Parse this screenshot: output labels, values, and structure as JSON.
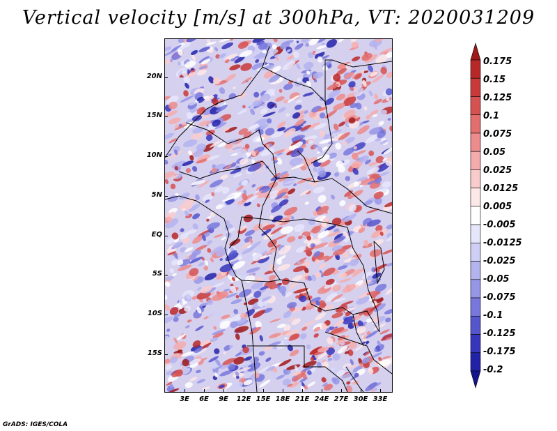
{
  "title": "Vertical velocity [m/s] at 300hPa, VT: 2020031209",
  "credit": "GrADS: IGES/COLA",
  "map": {
    "variable": "Vertical velocity",
    "units": "m/s",
    "level": "300hPa",
    "valid_time": "2020031209",
    "lat_labels": [
      "20N",
      "15N",
      "10N",
      "5N",
      "EQ",
      "5S",
      "10S",
      "15S"
    ],
    "lon_labels": [
      "3E",
      "6E",
      "9E",
      "12E",
      "15E",
      "18E",
      "21E",
      "24E",
      "27E",
      "30E",
      "33E"
    ]
  },
  "colorbar": {
    "labels": [
      "0.175",
      "0.15",
      "0.125",
      "0.1",
      "0.075",
      "0.05",
      "0.025",
      "0.0125",
      "0.005",
      "-0.005",
      "-0.0125",
      "-0.025",
      "-0.05",
      "-0.075",
      "-0.1",
      "-0.125",
      "-0.175",
      "-0.2"
    ],
    "colors": [
      "#a01818",
      "#b82828",
      "#c83a3a",
      "#d65252",
      "#e26e6e",
      "#ec8c8c",
      "#f4abab",
      "#f9cccc",
      "#fde8e8",
      "#ffffff",
      "#e6e6fb",
      "#cfcff5",
      "#b3b3ee",
      "#9696e6",
      "#7878dc",
      "#5656cc",
      "#3636bc",
      "#2222a8",
      "#14148c"
    ]
  }
}
